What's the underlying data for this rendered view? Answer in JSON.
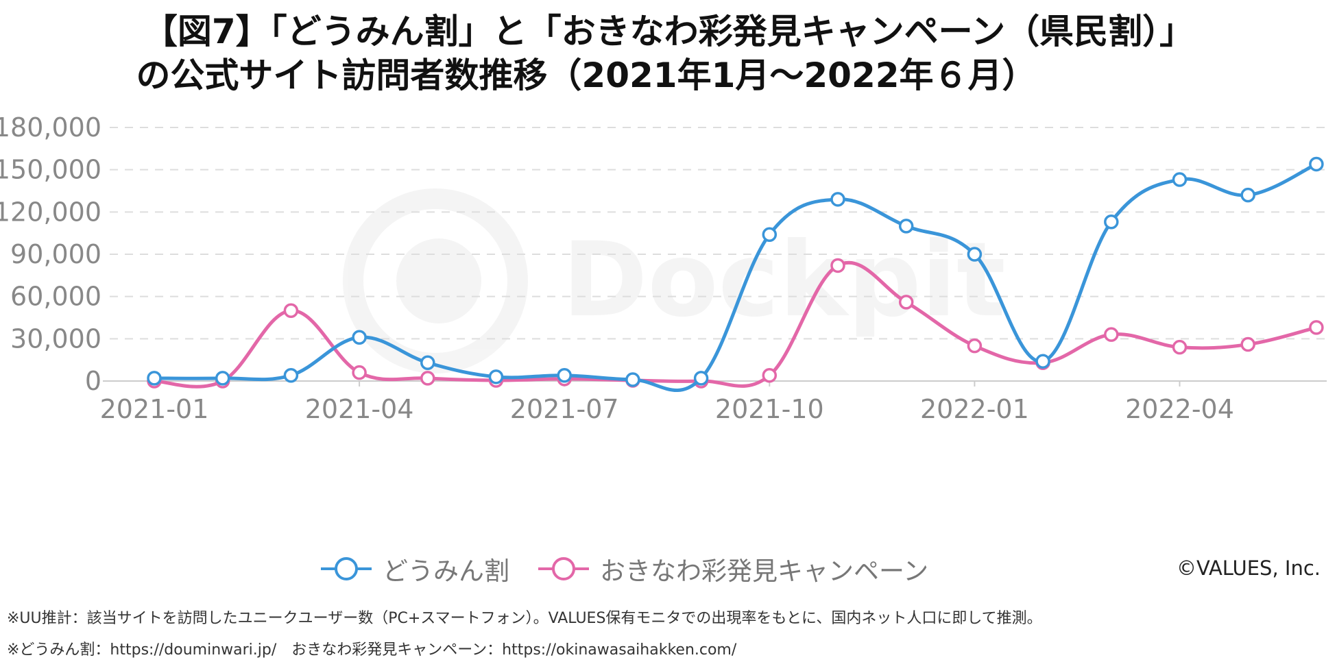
{
  "title_line1": "【図7】「どうみん割」と「おきなわ彩発見キャンペーン（県民割）」",
  "title_line2": "の公式サイト訪問者数推移（2021年1月～2022年６月）",
  "copyright": "©VALUES, Inc.",
  "note1": "※UU推計：該当サイトを訪問したユニークユーザー数（PC+スマートフォン）。VALUES保有モニタでの出現率をもとに、国内ネット人口に即して推測。",
  "note2": "※どうみん割：https://douminwari.jp/　おきなわ彩発見キャンペーン：https://okinawasaihakken.com/",
  "watermark": "Dockpit",
  "colors": {
    "series1": "#3a95d9",
    "series2": "#e367a8",
    "grid": "#dddddd",
    "axis_text": "#888888"
  },
  "chart_data": {
    "type": "line",
    "x": [
      "2021-01",
      "2021-02",
      "2021-03",
      "2021-04",
      "2021-05",
      "2021-06",
      "2021-07",
      "2021-08",
      "2021-09",
      "2021-10",
      "2021-11",
      "2021-12",
      "2022-01",
      "2022-02",
      "2022-03",
      "2022-04",
      "2022-05",
      "2022-06"
    ],
    "x_tick_labels": [
      "2021-01",
      "2021-04",
      "2021-07",
      "2021-10",
      "2022-01",
      "2022-04"
    ],
    "y_tick_labels": [
      "0",
      "30,000",
      "60,000",
      "90,000",
      "120,000",
      "150,000",
      "180,000"
    ],
    "ylim": [
      0,
      180000
    ],
    "grid": true,
    "legend_position": "bottom",
    "series": [
      {
        "name": "どうみん割",
        "values": [
          2000,
          2000,
          4000,
          31000,
          13000,
          3000,
          4000,
          1000,
          2000,
          104000,
          129000,
          110000,
          90000,
          14000,
          113000,
          143000,
          132000,
          154000
        ]
      },
      {
        "name": "おきなわ彩発見キャンペーン",
        "values": [
          0,
          0,
          50000,
          6000,
          2000,
          500,
          1500,
          500,
          0,
          4000,
          82000,
          56000,
          25000,
          13000,
          33000,
          24000,
          26000,
          38000
        ]
      }
    ]
  }
}
